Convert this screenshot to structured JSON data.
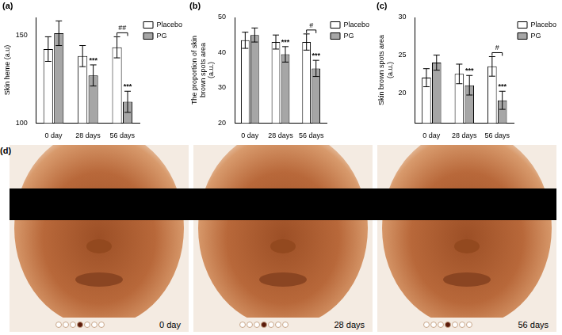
{
  "chart_data": [
    {
      "type": "bar",
      "panel": "(a)",
      "y_label": "Skin heme (a.u)",
      "categories": [
        "0 day",
        "28 days",
        "56 days"
      ],
      "series": [
        {
          "name": "Placebo",
          "color": "#ffffff",
          "values": [
            142,
            138,
            143
          ],
          "errors": [
            7,
            6,
            6
          ]
        },
        {
          "name": "PG",
          "color": "#a6a6a6",
          "values": [
            151,
            127,
            112
          ],
          "errors": [
            7,
            6,
            6
          ],
          "marks": [
            null,
            "***",
            "***"
          ]
        }
      ],
      "comparisons": [
        {
          "category": "56 days",
          "label": "##"
        }
      ],
      "ylim": [
        100,
        160
      ],
      "yticks": [
        100,
        150
      ],
      "grid": false,
      "legend": "upper right"
    },
    {
      "type": "bar",
      "panel": "(b)",
      "y_label": "The proportion of skin brown spots area (a.u.)",
      "categories": [
        "0 day",
        "28 days",
        "56 days"
      ],
      "series": [
        {
          "name": "Placebo",
          "color": "#ffffff",
          "values": [
            43.5,
            43,
            43
          ],
          "errors": [
            2.3,
            2,
            2.3
          ]
        },
        {
          "name": "PG",
          "color": "#a6a6a6",
          "values": [
            45,
            39.5,
            35.5
          ],
          "errors": [
            2,
            2.2,
            2.3
          ],
          "marks": [
            null,
            "***",
            "***"
          ]
        }
      ],
      "comparisons": [
        {
          "category": "56 days",
          "label": "#"
        }
      ],
      "ylim": [
        20,
        50
      ],
      "yticks": [
        20,
        30,
        40,
        50
      ],
      "grid": false,
      "legend": "upper right"
    },
    {
      "type": "bar",
      "panel": "(c)",
      "y_label": "Skin brown spots area (a.u.)",
      "categories": [
        "0 day",
        "28 days",
        "56 days"
      ],
      "series": [
        {
          "name": "Placebo",
          "color": "#ffffff",
          "values": [
            22,
            22.5,
            23.5
          ],
          "errors": [
            1.2,
            1.3,
            1.3
          ]
        },
        {
          "name": "PG",
          "color": "#a6a6a6",
          "values": [
            24,
            21,
            19
          ],
          "errors": [
            1,
            1.3,
            1.2
          ],
          "marks": [
            null,
            "***",
            "***"
          ]
        }
      ],
      "comparisons": [
        {
          "category": "56 days",
          "label": "#"
        }
      ],
      "ylim": [
        16,
        30
      ],
      "yticks": [
        20,
        25,
        30
      ],
      "grid": false,
      "legend": "upper right"
    }
  ],
  "panel_d": {
    "panel": "(d)",
    "captions": [
      "0 day",
      "28 days",
      "56 days"
    ]
  }
}
